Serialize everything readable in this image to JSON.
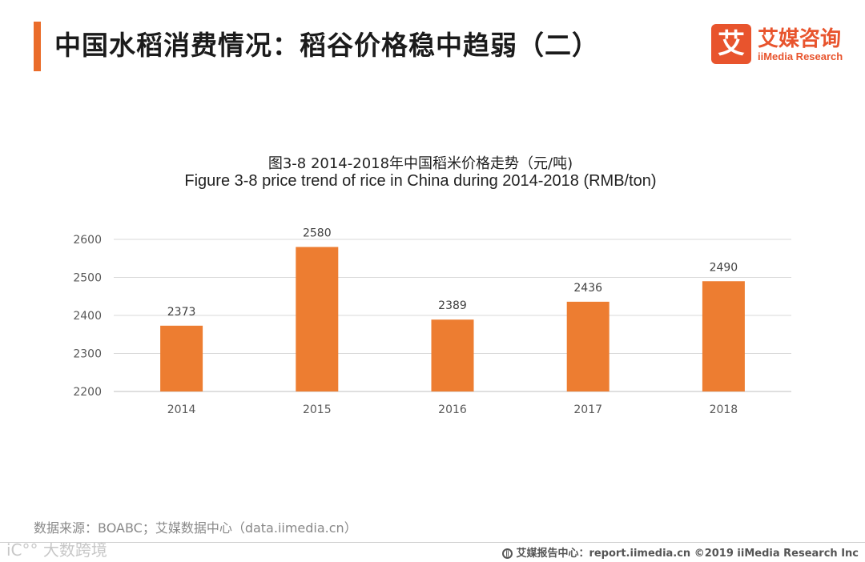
{
  "header": {
    "title": "中国水稻消费情况：稻谷价格稳中趋弱（二）",
    "logo_mark": "艾",
    "logo_cn": "艾媒咨询",
    "logo_en": "iiMedia Research",
    "accent_color": "#ea6c2a"
  },
  "chart_data": {
    "type": "bar",
    "title": "图3-8 2014-2018年中国稻米价格走势（元/吨)",
    "subtitle": "Figure 3-8 price trend of rice in China during 2014-2018 (RMB/ton)",
    "categories": [
      "2014",
      "2015",
      "2016",
      "2017",
      "2018"
    ],
    "values": [
      2373,
      2580,
      2389,
      2436,
      2490
    ],
    "yticks": [
      2200,
      2300,
      2400,
      2500,
      2600
    ],
    "ylim": [
      2200,
      2600
    ],
    "grid": true,
    "bar_color": "#ed7d31"
  },
  "footer": {
    "source": "数据来源：BOABC；艾媒数据中心（data.iimedia.cn）",
    "watermark": "iC°° 大数跨境",
    "right": "艾媒报告中心：report.iimedia.cn  ©2019 iiMedia Research Inc"
  }
}
